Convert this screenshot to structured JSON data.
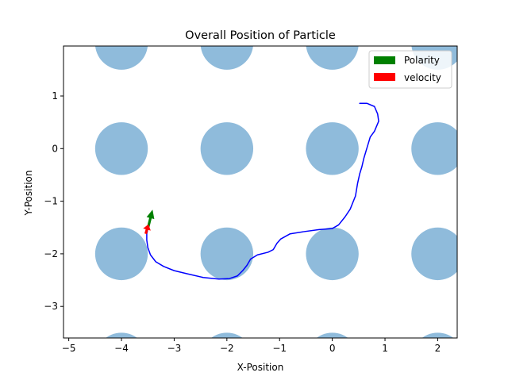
{
  "chart_data": {
    "type": "scatter",
    "title": "Overall Position of Particle",
    "xlabel": "X-Position",
    "ylabel": "Y-Position",
    "xlim": [
      -5.1,
      2.37
    ],
    "ylim": [
      -3.6,
      1.95
    ],
    "xticks": [
      -5,
      -4,
      -3,
      -2,
      -1,
      0,
      1,
      2
    ],
    "yticks": [
      -3,
      -2,
      -1,
      0,
      1
    ],
    "obstacles": {
      "radius": 0.5,
      "color": "#8fbbdb",
      "centers_x": [
        -4,
        -2,
        0,
        2
      ],
      "centers_y": [
        -4,
        -2,
        0,
        2
      ]
    },
    "trajectory": {
      "color": "#0000ff",
      "points": [
        [
          0.52,
          0.86
        ],
        [
          0.66,
          0.86
        ],
        [
          0.8,
          0.8
        ],
        [
          0.86,
          0.66
        ],
        [
          0.88,
          0.52
        ],
        [
          0.8,
          0.33
        ],
        [
          0.72,
          0.22
        ],
        [
          0.66,
          0.02
        ],
        [
          0.6,
          -0.18
        ],
        [
          0.56,
          -0.35
        ],
        [
          0.52,
          -0.48
        ],
        [
          0.48,
          -0.66
        ],
        [
          0.44,
          -0.9
        ],
        [
          0.34,
          -1.15
        ],
        [
          0.24,
          -1.3
        ],
        [
          0.12,
          -1.45
        ],
        [
          0.0,
          -1.52
        ],
        [
          -0.25,
          -1.54
        ],
        [
          -0.55,
          -1.58
        ],
        [
          -0.8,
          -1.62
        ],
        [
          -0.98,
          -1.72
        ],
        [
          -1.05,
          -1.8
        ],
        [
          -1.12,
          -1.92
        ],
        [
          -1.22,
          -1.97
        ],
        [
          -1.42,
          -2.02
        ],
        [
          -1.55,
          -2.1
        ],
        [
          -1.62,
          -2.22
        ],
        [
          -1.7,
          -2.32
        ],
        [
          -1.8,
          -2.42
        ],
        [
          -1.95,
          -2.47
        ],
        [
          -2.15,
          -2.48
        ],
        [
          -2.45,
          -2.45
        ],
        [
          -2.75,
          -2.38
        ],
        [
          -3.0,
          -2.32
        ],
        [
          -3.2,
          -2.24
        ],
        [
          -3.35,
          -2.15
        ],
        [
          -3.45,
          -2.02
        ],
        [
          -3.5,
          -1.88
        ],
        [
          -3.52,
          -1.74
        ],
        [
          -3.52,
          -1.62
        ],
        [
          -3.5,
          -1.52
        ]
      ]
    },
    "arrows": [
      {
        "name": "Polarity",
        "color": "#008000",
        "x": -3.5,
        "y": -1.52,
        "dx": 0.09,
        "dy": 0.36
      },
      {
        "name": "velocity",
        "color": "#ff0000",
        "x": -3.54,
        "y": -1.62,
        "dx": 0.05,
        "dy": 0.18
      }
    ],
    "legend": {
      "position": "top-right",
      "entries": [
        {
          "label": "Polarity",
          "color": "#008000"
        },
        {
          "label": "velocity",
          "color": "#ff0000"
        }
      ]
    },
    "grid": false
  }
}
